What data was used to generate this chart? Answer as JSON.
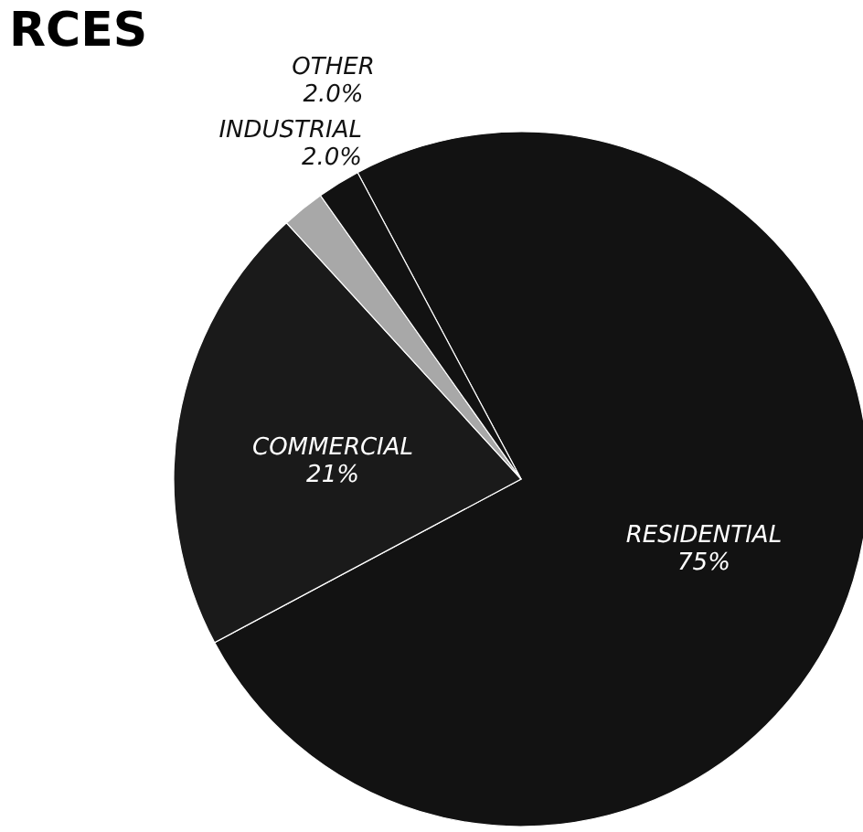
{
  "chart_data": {
    "type": "pie",
    "title": "RCES",
    "categories": [
      "RESIDENTIAL",
      "COMMERCIAL",
      "INDUSTRIAL",
      "OTHER"
    ],
    "values": [
      75,
      21,
      2.0,
      2.0
    ],
    "value_labels": [
      "75%",
      "21%",
      "2.0%",
      "2.0%"
    ],
    "colors": [
      "#121212",
      "#1a1a1a",
      "#a8a8a8",
      "#121212"
    ],
    "legend": false
  }
}
